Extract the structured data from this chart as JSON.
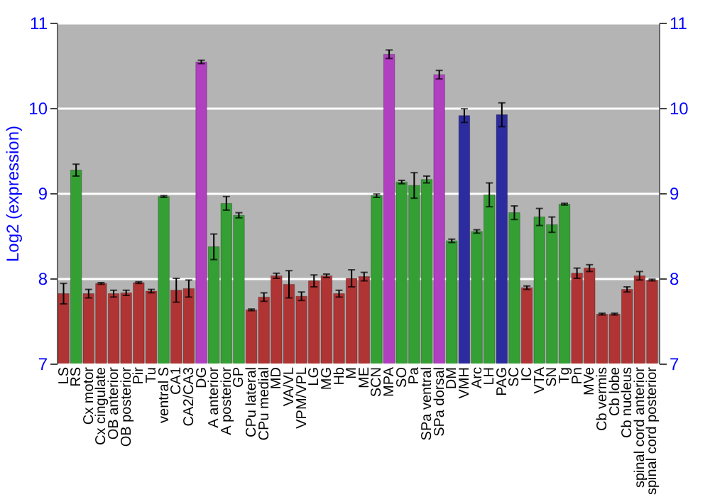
{
  "chart_data": {
    "type": "bar",
    "ylabel": "Log2 (expression)",
    "categories": [
      "LS",
      "RS",
      "Cx motor",
      "Cx cingulate",
      "OB anterior",
      "OB posterior",
      "Pir",
      "Tu",
      "ventral S",
      "CA1",
      "CA2/CA3",
      "DG",
      "A anterior",
      "A posterior",
      "GP",
      "CPu lateral",
      "CPu medial",
      "MD",
      "VA/VL",
      "VPM/VPL",
      "LG",
      "MG",
      "Hb",
      "M",
      "ME",
      "SCN",
      "MPA",
      "SO",
      "Pa",
      "SPa ventral",
      "SPa dorsal",
      "DM",
      "VMH",
      "Arc",
      "LH",
      "PAG",
      "SC",
      "IC",
      "VTA",
      "SN",
      "Tg",
      "Pn",
      "MVe",
      "Cb vermis",
      "Cb lobe",
      "Cb nucleus",
      "spinal cord anterior",
      "spinal cord posterior"
    ],
    "values": [
      7.82,
      9.27,
      7.82,
      7.94,
      7.82,
      7.83,
      7.95,
      7.85,
      8.96,
      7.86,
      7.88,
      10.54,
      8.37,
      8.88,
      8.74,
      7.63,
      7.78,
      8.03,
      7.93,
      7.79,
      7.97,
      8.03,
      7.82,
      8.0,
      8.02,
      8.97,
      10.63,
      9.13,
      9.09,
      9.16,
      10.39,
      8.44,
      9.91,
      8.55,
      8.98,
      9.92,
      8.77,
      7.89,
      8.72,
      8.63,
      8.87,
      8.06,
      8.12,
      7.58,
      7.58,
      7.87,
      8.03,
      7.98
    ],
    "errors": [
      0.12,
      0.07,
      0.05,
      0.01,
      0.04,
      0.03,
      0.01,
      0.02,
      0.01,
      0.14,
      0.1,
      0.02,
      0.15,
      0.08,
      0.03,
      0.01,
      0.05,
      0.03,
      0.16,
      0.05,
      0.07,
      0.02,
      0.04,
      0.1,
      0.05,
      0.02,
      0.05,
      0.02,
      0.15,
      0.04,
      0.05,
      0.02,
      0.08,
      0.02,
      0.14,
      0.14,
      0.08,
      0.02,
      0.1,
      0.09,
      0.01,
      0.06,
      0.04,
      0.01,
      0.01,
      0.03,
      0.05,
      0.01
    ],
    "colors": [
      "#b03434",
      "#34a034",
      "#b03434",
      "#b03434",
      "#b03434",
      "#b03434",
      "#b03434",
      "#b03434",
      "#34a034",
      "#b03434",
      "#b03434",
      "#b040c0",
      "#34a034",
      "#34a034",
      "#34a034",
      "#b03434",
      "#b03434",
      "#b03434",
      "#b03434",
      "#b03434",
      "#b03434",
      "#b03434",
      "#b03434",
      "#b03434",
      "#b03434",
      "#34a034",
      "#b040c0",
      "#34a034",
      "#34a034",
      "#34a034",
      "#b040c0",
      "#34a034",
      "#2c2ca0",
      "#34a034",
      "#34a034",
      "#2c2ca0",
      "#34a034",
      "#b03434",
      "#34a034",
      "#34a034",
      "#34a034",
      "#b03434",
      "#b03434",
      "#b03434",
      "#b03434",
      "#b03434",
      "#b03434",
      "#b03434"
    ],
    "ylim": [
      7,
      11
    ],
    "yticks": [
      7,
      8,
      9,
      10,
      11
    ],
    "y2lim": [
      7,
      11
    ],
    "y2ticks": [
      7,
      8,
      9,
      10,
      11
    ],
    "grid": "y"
  }
}
